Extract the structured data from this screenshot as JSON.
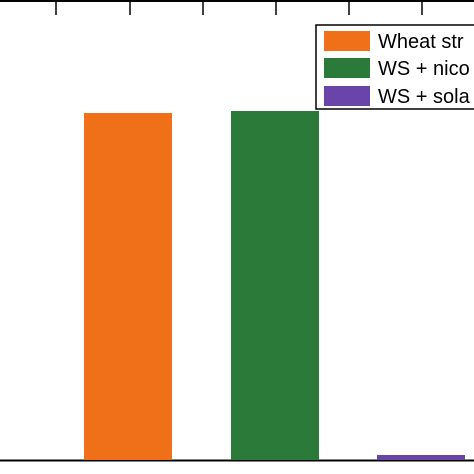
{
  "chart_data": {
    "type": "bar",
    "categories": [
      "Wheat str",
      "WS + nico",
      "WS + sola"
    ],
    "values": [
      347,
      349,
      5
    ],
    "ylim": [
      0,
      460
    ],
    "grid": false,
    "legend": {
      "placement": "top-right",
      "entries": [
        {
          "label": "Wheat str",
          "color": "#f07019"
        },
        {
          "label": "WS + nico",
          "color": "#2b7a3a"
        },
        {
          "label": "WS + sola",
          "color": "#6a44a8"
        }
      ]
    }
  }
}
